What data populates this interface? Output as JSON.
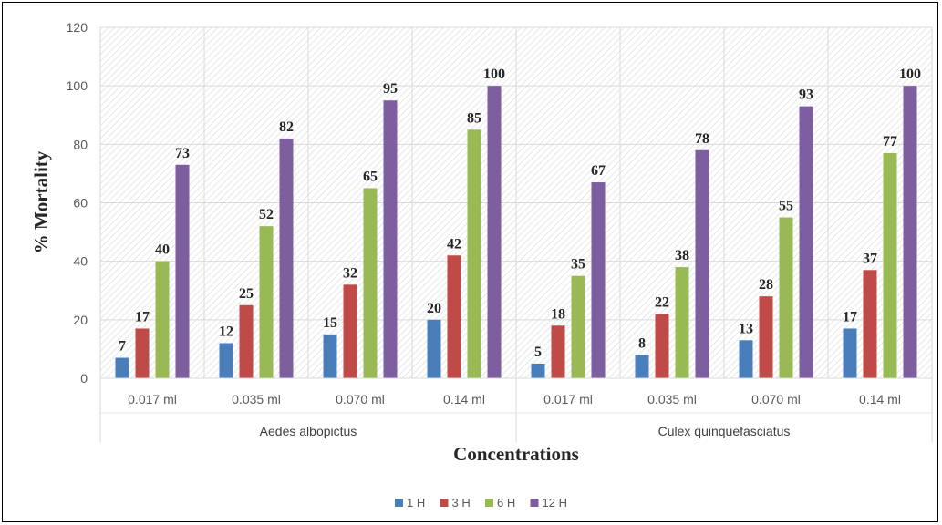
{
  "chart_data": {
    "type": "bar",
    "title": "",
    "xlabel": "Concentrations",
    "ylabel": "% Mortality",
    "ylim": [
      0,
      120
    ],
    "yticks": [
      0,
      20,
      40,
      60,
      80,
      100,
      120
    ],
    "grid": true,
    "legend_position": "bottom",
    "groups": [
      "Aedes albopictus",
      "Culex quinquefasciatus"
    ],
    "categories": [
      "0.017 ml",
      "0.035 ml",
      "0.070 ml",
      "0.14 ml",
      "0.017 ml",
      "0.035 ml",
      "0.070 ml",
      "0.14 ml"
    ],
    "series": [
      {
        "name": "1 H",
        "color": "#4a7ebb",
        "values": [
          7,
          12,
          15,
          20,
          5,
          8,
          13,
          17
        ]
      },
      {
        "name": "3 H",
        "color": "#be4b48",
        "values": [
          17,
          25,
          32,
          42,
          18,
          22,
          28,
          37
        ]
      },
      {
        "name": "6 H",
        "color": "#98b954",
        "values": [
          40,
          52,
          65,
          85,
          35,
          38,
          55,
          77
        ]
      },
      {
        "name": "12 H",
        "color": "#7d5fa0",
        "values": [
          73,
          82,
          95,
          100,
          67,
          78,
          93,
          100
        ]
      }
    ]
  }
}
